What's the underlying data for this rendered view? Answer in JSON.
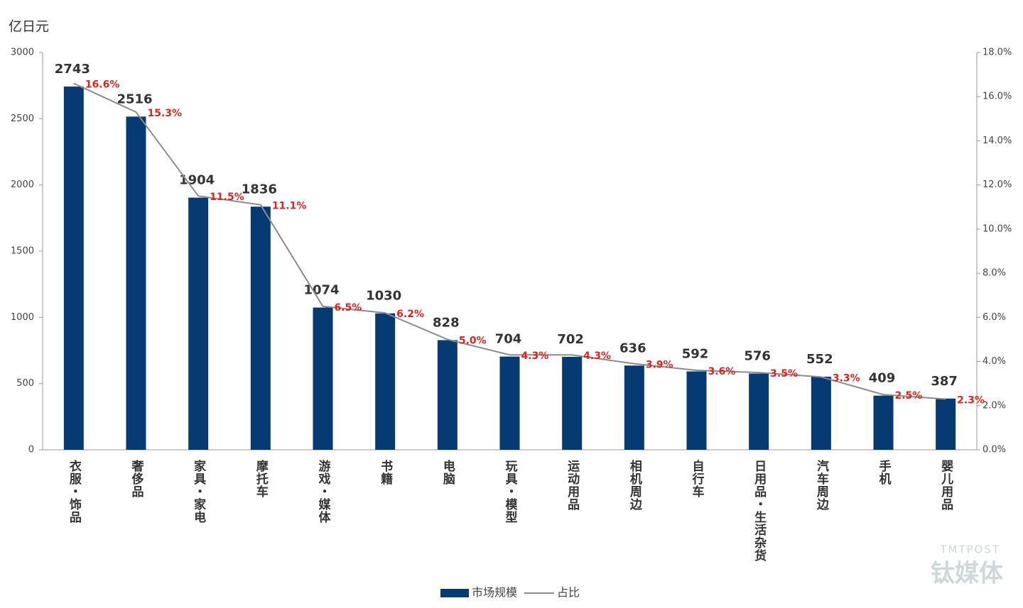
{
  "chart_data": {
    "type": "bar_line",
    "y_axis_label": "亿日元",
    "categories": [
      "衣服・饰品",
      "奢侈品",
      "家具・家电",
      "摩托车",
      "游戏・媒体",
      "书籍",
      "电脑",
      "玩具・模型",
      "运动用品",
      "相机周边",
      "自行车",
      "日用品・生活杂货",
      "汽车周边",
      "手机",
      "婴儿用品"
    ],
    "series": [
      {
        "name": "市场规模",
        "color": "#063a72",
        "values": [
          2743,
          2516,
          1904,
          1836,
          1074,
          1030,
          828,
          704,
          702,
          636,
          592,
          576,
          552,
          409,
          387
        ]
      },
      {
        "name": "占比",
        "color": "#8c8c8c",
        "axis": "y2",
        "values": [
          16.6,
          15.3,
          11.5,
          11.1,
          6.5,
          6.2,
          5.0,
          4.3,
          4.3,
          3.9,
          3.6,
          3.5,
          3.3,
          2.5,
          2.3
        ],
        "value_labels": [
          "16.6%",
          "15.3%",
          "11.5%",
          "11.1%",
          "6.5%",
          "6.2%",
          "5.0%",
          "4.3%",
          "4.3%",
          "3.9%",
          "3.6%",
          "3.5%",
          "3.3%",
          "2.5%",
          "2.3%"
        ]
      }
    ],
    "ylim": [
      0,
      3000
    ],
    "yticks": [
      0,
      500,
      1000,
      1500,
      2000,
      2500,
      3000
    ],
    "y2lim": [
      0,
      18
    ],
    "y2ticks": [
      {
        "value": 0,
        "label": "0.0%"
      },
      {
        "value": 2,
        "label": "2.0%"
      },
      {
        "value": 4,
        "label": "4.0%"
      },
      {
        "value": 6,
        "label": "6.0%"
      },
      {
        "value": 8,
        "label": "8.0%"
      },
      {
        "value": 10,
        "label": "10.0%"
      },
      {
        "value": 12,
        "label": "12.0%"
      },
      {
        "value": 14,
        "label": "14.0%"
      },
      {
        "value": 16,
        "label": "16.0%"
      },
      {
        "value": 18,
        "label": "18.0%"
      }
    ],
    "legend": "bottom",
    "watermark": {
      "brand": "TMTPOST",
      "name": "钛媒体"
    }
  }
}
